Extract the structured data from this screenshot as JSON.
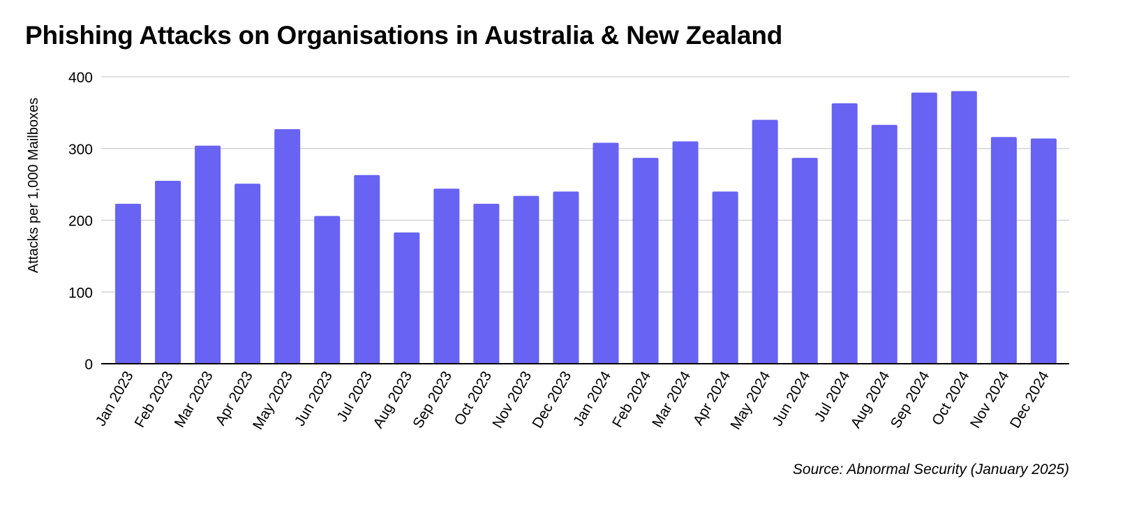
{
  "chart_data": {
    "type": "bar",
    "title": "Phishing Attacks on Organisations in Australia & New Zealand",
    "xlabel": "",
    "ylabel": "Attacks per 1,000 Mailboxes",
    "ylim": [
      0,
      400
    ],
    "yticks": [
      0,
      100,
      200,
      300,
      400
    ],
    "grid": true,
    "categories": [
      "Jan 2023",
      "Feb 2023",
      "Mar 2023",
      "Apr 2023",
      "May 2023",
      "Jun 2023",
      "Jul 2023",
      "Aug 2023",
      "Sep 2023",
      "Oct 2023",
      "Nov 2023",
      "Dec 2023",
      "Jan 2024",
      "Feb 2024",
      "Mar 2024",
      "Apr 2024",
      "May 2024",
      "Jun 2024",
      "Jul 2024",
      "Aug 2024",
      "Sep 2024",
      "Oct 2024",
      "Nov 2024",
      "Dec 2024"
    ],
    "values": [
      223,
      255,
      304,
      251,
      327,
      206,
      263,
      183,
      244,
      223,
      234,
      240,
      308,
      287,
      310,
      240,
      340,
      287,
      363,
      333,
      378,
      380,
      316,
      314
    ],
    "colors": {
      "bar": "#6863F2",
      "grid": "#CCCCCC",
      "axis": "#000000"
    }
  },
  "source": "Source: Abnormal Security (January 2025)"
}
